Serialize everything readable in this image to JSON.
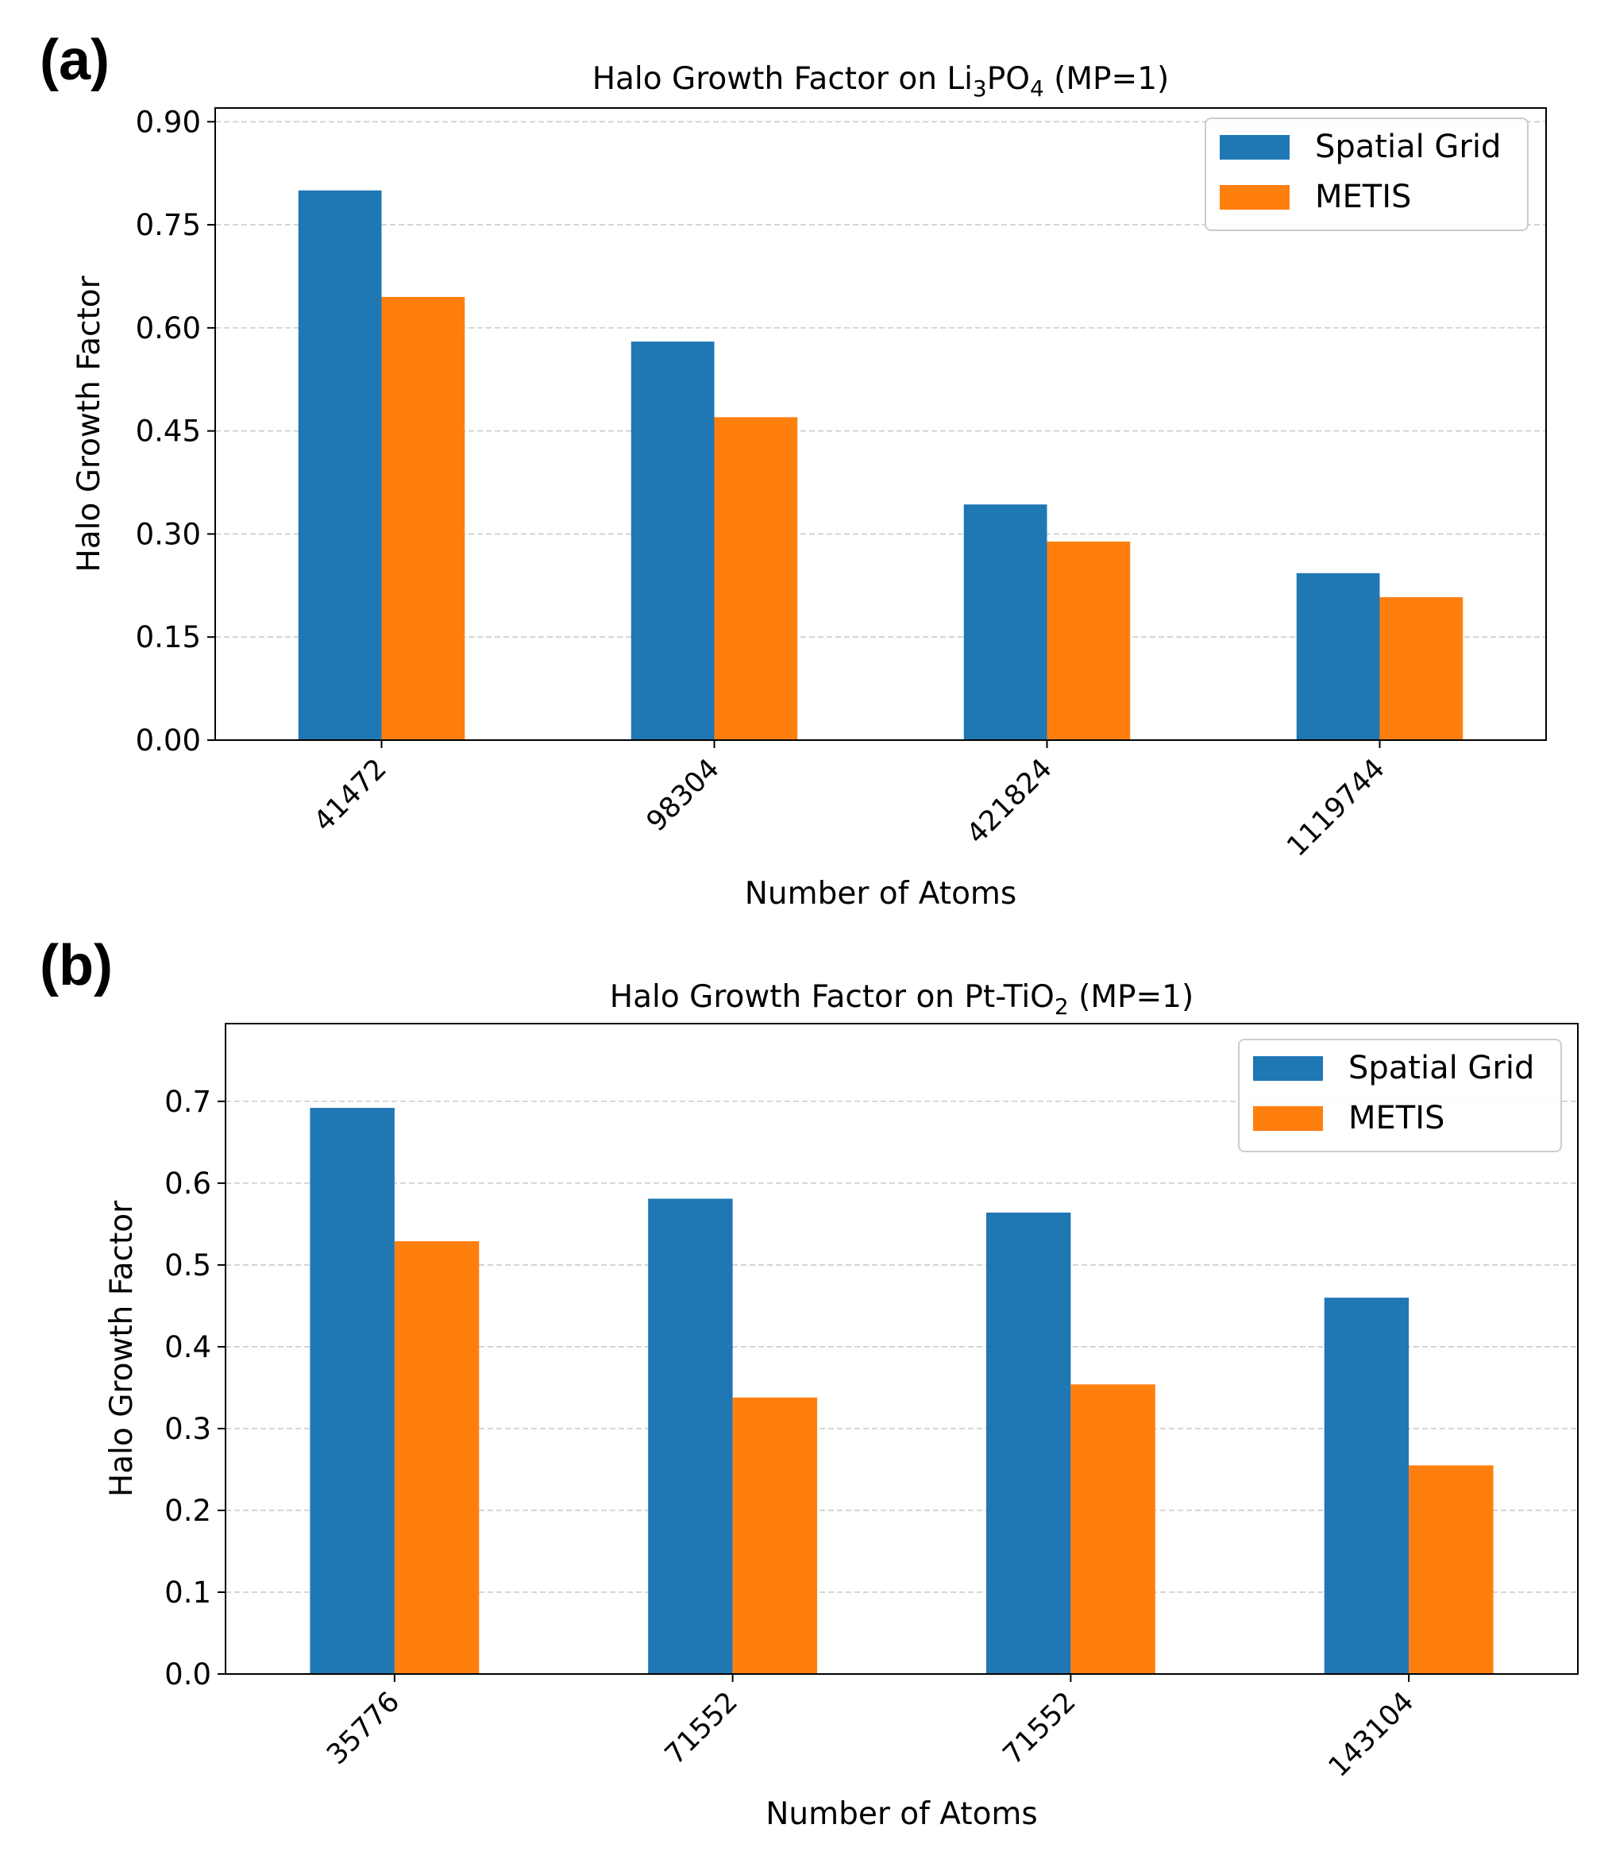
{
  "figure": {
    "panel_a_label": "(a)",
    "panel_b_label": "(b)"
  },
  "colors": {
    "spatial_grid": "#1f77b4",
    "metis": "#ff7f0e",
    "grid": "#cccccc",
    "axis": "#000000"
  },
  "chart_data": [
    {
      "type": "bar",
      "title_prefix": "Halo Growth Factor on Li",
      "title_sub1": "3",
      "title_mid": "PO",
      "title_sub2": "4",
      "title_suffix": " (MP=1)",
      "title": "Halo Growth Factor on Li3PO4 (MP=1)",
      "xlabel": "Number of Atoms",
      "ylabel": "Halo Growth Factor",
      "categories": [
        "41472",
        "98304",
        "421824",
        "1119744"
      ],
      "series": [
        {
          "name": "Spatial Grid",
          "values": [
            0.8,
            0.58,
            0.343,
            0.243
          ]
        },
        {
          "name": "METIS",
          "values": [
            0.645,
            0.47,
            0.289,
            0.208
          ]
        }
      ],
      "ylim": [
        0,
        0.92
      ],
      "yticks": [
        0.0,
        0.15,
        0.3,
        0.45,
        0.6,
        0.75,
        0.9
      ],
      "ytick_labels": [
        "0.00",
        "0.15",
        "0.30",
        "0.45",
        "0.60",
        "0.75",
        "0.90"
      ],
      "grid": "y-dashed",
      "legend": "top-right"
    },
    {
      "type": "bar",
      "title_prefix": "Halo Growth Factor on Pt-TiO",
      "title_sub1": "2",
      "title_mid": "",
      "title_sub2": "",
      "title_suffix": " (MP=1)",
      "title": "Halo Growth Factor on Pt-TiO2 (MP=1)",
      "xlabel": "Number of Atoms",
      "ylabel": "Halo Growth Factor",
      "categories": [
        "35776",
        "71552",
        "71552",
        "143104"
      ],
      "series": [
        {
          "name": "Spatial Grid",
          "values": [
            0.692,
            0.581,
            0.564,
            0.46
          ]
        },
        {
          "name": "METIS",
          "values": [
            0.529,
            0.338,
            0.354,
            0.255
          ]
        }
      ],
      "ylim": [
        0,
        0.795
      ],
      "yticks": [
        0.0,
        0.1,
        0.2,
        0.3,
        0.4,
        0.5,
        0.6,
        0.7
      ],
      "ytick_labels": [
        "0.0",
        "0.1",
        "0.2",
        "0.3",
        "0.4",
        "0.5",
        "0.6",
        "0.7"
      ],
      "grid": "y-dashed",
      "legend": "top-right"
    }
  ]
}
